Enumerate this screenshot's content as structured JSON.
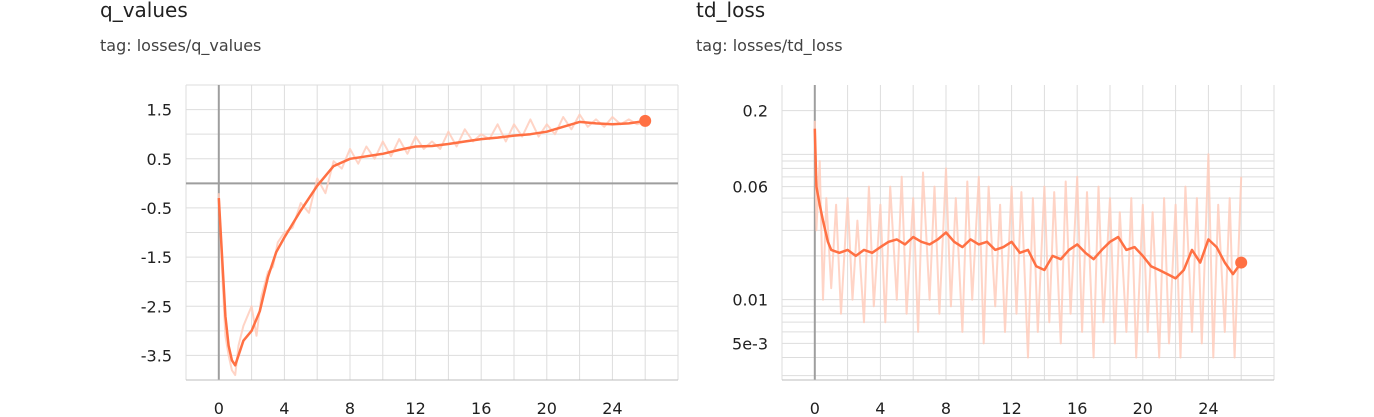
{
  "cards": [
    {
      "title": "q_values",
      "tag": "tag: losses/q_values"
    },
    {
      "title": "td_loss",
      "tag": "tag: losses/td_loss"
    }
  ],
  "chart_data": [
    {
      "type": "line",
      "title": "q_values",
      "subtitle": "tag: losses/q_values",
      "xlim": [
        -2,
        28
      ],
      "ylim": [
        -4,
        2
      ],
      "x_ticks": [
        0,
        4,
        8,
        12,
        16,
        20,
        24
      ],
      "x_tick_labels": [
        "0",
        "4",
        "8",
        "12",
        "16",
        "20",
        "24"
      ],
      "y_ticks": [
        1.5,
        0.5,
        -0.5,
        -1.5,
        -2.5,
        -3.5
      ],
      "y_tick_labels": [
        "1.5",
        "0.5",
        "-0.5",
        "-1.5",
        "-2.5",
        "-3.5"
      ],
      "y_scale": "linear",
      "grid": true,
      "colors": {
        "smoothed": "#ff7043",
        "raw": "#ffccbc",
        "axis": "#9e9e9e",
        "grid": "#dddddd"
      },
      "series": [
        {
          "role": "smoothed",
          "x": [
            0,
            0.2,
            0.4,
            0.6,
            0.8,
            1,
            1.5,
            2,
            2.5,
            3,
            3.5,
            4,
            5,
            6,
            7,
            8,
            9,
            10,
            11,
            12,
            13,
            14,
            15,
            16,
            17,
            18,
            19,
            20,
            21,
            22,
            23,
            24,
            25,
            26
          ],
          "y": [
            -0.3,
            -1.5,
            -2.7,
            -3.3,
            -3.6,
            -3.7,
            -3.2,
            -3.0,
            -2.6,
            -1.9,
            -1.4,
            -1.1,
            -0.55,
            -0.05,
            0.35,
            0.5,
            0.55,
            0.6,
            0.68,
            0.75,
            0.76,
            0.8,
            0.85,
            0.9,
            0.93,
            0.97,
            1.0,
            1.05,
            1.15,
            1.25,
            1.22,
            1.2,
            1.22,
            1.27
          ]
        },
        {
          "role": "raw",
          "x": [
            0,
            0.2,
            0.4,
            0.6,
            0.8,
            1,
            1.2,
            1.5,
            2,
            2.3,
            2.6,
            3,
            3.3,
            3.6,
            4,
            4.5,
            5,
            5.5,
            6,
            6.5,
            7,
            7.5,
            8,
            8.5,
            9,
            9.5,
            10,
            10.5,
            11,
            11.5,
            12,
            12.5,
            13,
            13.5,
            14,
            14.5,
            15,
            15.5,
            16,
            16.5,
            17,
            17.5,
            18,
            18.5,
            19,
            19.5,
            20,
            20.5,
            21,
            21.5,
            22,
            22.5,
            23,
            23.5,
            24,
            24.5,
            25,
            25.5,
            26
          ],
          "y": [
            -0.2,
            -1.8,
            -3.1,
            -3.5,
            -3.8,
            -3.9,
            -3.3,
            -2.9,
            -2.5,
            -3.1,
            -2.3,
            -1.8,
            -1.7,
            -1.2,
            -1.0,
            -0.9,
            -0.4,
            -0.6,
            0.1,
            -0.2,
            0.45,
            0.3,
            0.7,
            0.4,
            0.75,
            0.5,
            0.85,
            0.55,
            0.9,
            0.6,
            0.95,
            0.7,
            0.85,
            0.7,
            1.05,
            0.75,
            1.1,
            0.85,
            1.0,
            0.9,
            1.2,
            0.85,
            1.2,
            0.95,
            1.3,
            0.95,
            1.2,
            1.0,
            1.35,
            1.1,
            1.4,
            1.15,
            1.3,
            1.15,
            1.35,
            1.2,
            1.3,
            1.2,
            1.25
          ]
        }
      ],
      "last_point": {
        "x": 26,
        "y": 1.27
      }
    },
    {
      "type": "line",
      "title": "td_loss",
      "subtitle": "tag: losses/td_loss",
      "xlim": [
        -2,
        28
      ],
      "ylim": [
        0.0028,
        0.3
      ],
      "x_ticks": [
        0,
        4,
        8,
        12,
        16,
        20,
        24
      ],
      "x_tick_labels": [
        "0",
        "4",
        "8",
        "12",
        "16",
        "20",
        "24"
      ],
      "y_ticks": [
        0.2,
        0.06,
        0.01,
        0.005
      ],
      "y_tick_labels": [
        "0.2",
        "0.06",
        "0.01",
        "5e-3"
      ],
      "y_scale": "log",
      "grid": true,
      "colors": {
        "smoothed": "#ff7043",
        "raw": "#ffccbc",
        "axis": "#9e9e9e",
        "grid": "#dddddd"
      },
      "series": [
        {
          "role": "smoothed",
          "x": [
            0,
            0.1,
            0.3,
            0.5,
            0.8,
            1,
            1.5,
            2,
            2.5,
            3,
            3.5,
            4,
            4.5,
            5,
            5.5,
            6,
            6.5,
            7,
            7.5,
            8,
            8.5,
            9,
            9.5,
            10,
            10.5,
            11,
            11.5,
            12,
            12.5,
            13,
            13.5,
            14,
            14.5,
            15,
            15.5,
            16,
            16.5,
            17,
            17.5,
            18,
            18.5,
            19,
            19.5,
            20,
            20.5,
            21,
            21.5,
            22,
            22.5,
            23,
            23.5,
            24,
            24.5,
            25,
            25.5,
            26
          ],
          "y": [
            0.15,
            0.06,
            0.045,
            0.035,
            0.025,
            0.022,
            0.021,
            0.022,
            0.02,
            0.022,
            0.021,
            0.023,
            0.025,
            0.026,
            0.024,
            0.027,
            0.025,
            0.024,
            0.026,
            0.029,
            0.025,
            0.023,
            0.026,
            0.024,
            0.025,
            0.022,
            0.023,
            0.025,
            0.021,
            0.022,
            0.017,
            0.016,
            0.02,
            0.019,
            0.022,
            0.024,
            0.021,
            0.019,
            0.022,
            0.025,
            0.027,
            0.022,
            0.023,
            0.02,
            0.017,
            0.016,
            0.015,
            0.014,
            0.016,
            0.022,
            0.018,
            0.026,
            0.023,
            0.018,
            0.015,
            0.018
          ]
        },
        {
          "role": "raw",
          "x": [
            0,
            0.1,
            0.3,
            0.5,
            0.7,
            1,
            1.3,
            1.6,
            2,
            2.3,
            2.6,
            3,
            3.3,
            3.6,
            4,
            4.3,
            4.6,
            5,
            5.3,
            5.6,
            6,
            6.3,
            6.6,
            7,
            7.3,
            7.6,
            8,
            8.3,
            8.6,
            9,
            9.3,
            9.6,
            10,
            10.3,
            10.6,
            11,
            11.3,
            11.6,
            12,
            12.3,
            12.6,
            13,
            13.3,
            13.6,
            14,
            14.3,
            14.6,
            15,
            15.3,
            15.6,
            16,
            16.3,
            16.6,
            17,
            17.3,
            17.6,
            18,
            18.3,
            18.6,
            19,
            19.3,
            19.6,
            20,
            20.3,
            20.6,
            21,
            21.3,
            21.6,
            22,
            22.3,
            22.6,
            23,
            23.3,
            23.6,
            24,
            24.3,
            24.6,
            25,
            25.3,
            25.6,
            26
          ],
          "y": [
            0.17,
            0.03,
            0.09,
            0.01,
            0.05,
            0.012,
            0.045,
            0.008,
            0.05,
            0.01,
            0.035,
            0.007,
            0.06,
            0.009,
            0.045,
            0.007,
            0.06,
            0.01,
            0.07,
            0.008,
            0.05,
            0.006,
            0.075,
            0.01,
            0.06,
            0.008,
            0.08,
            0.009,
            0.05,
            0.006,
            0.065,
            0.01,
            0.07,
            0.005,
            0.06,
            0.009,
            0.045,
            0.006,
            0.06,
            0.008,
            0.055,
            0.004,
            0.05,
            0.006,
            0.06,
            0.007,
            0.055,
            0.005,
            0.065,
            0.008,
            0.07,
            0.006,
            0.055,
            0.004,
            0.06,
            0.007,
            0.05,
            0.005,
            0.04,
            0.006,
            0.05,
            0.004,
            0.045,
            0.006,
            0.04,
            0.004,
            0.05,
            0.005,
            0.045,
            0.004,
            0.06,
            0.006,
            0.05,
            0.005,
            0.1,
            0.004,
            0.045,
            0.006,
            0.05,
            0.004,
            0.07
          ]
        }
      ],
      "last_point": {
        "x": 26,
        "y": 0.018
      }
    }
  ]
}
